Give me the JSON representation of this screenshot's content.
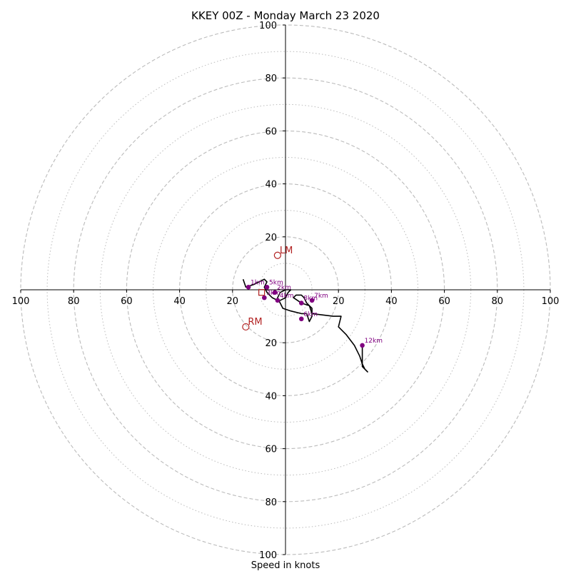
{
  "chart_data": {
    "type": "hodograph",
    "title": "KKEY 00Z - Monday March 23 2020",
    "xlabel": "Speed in knots",
    "units": "knots",
    "axis_range": [
      -100,
      100
    ],
    "ring_major": [
      20,
      40,
      60,
      80,
      100
    ],
    "ring_minor": [
      10,
      30,
      50,
      70,
      90
    ],
    "tick_labels_x": [
      "100",
      "80",
      "60",
      "40",
      "20",
      "",
      "20",
      "40",
      "60",
      "80",
      "100"
    ],
    "tick_labels_y_top": [
      "100",
      "80",
      "60",
      "40",
      "20"
    ],
    "tick_labels_y_bottom": [
      "20",
      "40",
      "60",
      "80",
      "100"
    ],
    "colors": {
      "hodograph_line": "#000000",
      "level_markers": "#800080",
      "storm_motion": "#b22222",
      "rings": "#bbbbbb",
      "axes": "#000000"
    },
    "hodograph_trace": [
      [
        -16,
        4
      ],
      [
        -15,
        1
      ],
      [
        -12,
        2
      ],
      [
        -8,
        4
      ],
      [
        -7,
        3
      ],
      [
        -8,
        1
      ],
      [
        -7,
        -1
      ],
      [
        -6,
        -2
      ],
      [
        -5,
        -3
      ],
      [
        -3,
        -4
      ],
      [
        -2,
        -4
      ],
      [
        0,
        -3
      ],
      [
        1,
        -1
      ],
      [
        2,
        0
      ],
      [
        0,
        0
      ],
      [
        -2,
        -1
      ],
      [
        -3,
        -3
      ],
      [
        -2,
        -5
      ],
      [
        -1,
        -7
      ],
      [
        2,
        -8
      ],
      [
        6,
        -9
      ],
      [
        8,
        -9
      ],
      [
        9,
        -12
      ],
      [
        10,
        -10
      ],
      [
        10,
        -7
      ],
      [
        8,
        -5
      ],
      [
        7,
        -3
      ],
      [
        6,
        -2
      ],
      [
        4,
        -2
      ],
      [
        3,
        -3
      ],
      [
        6,
        -5
      ],
      [
        9,
        -6
      ],
      [
        10,
        -9
      ],
      [
        18,
        -10
      ],
      [
        21,
        -10
      ],
      [
        20,
        -14
      ],
      [
        23,
        -17
      ],
      [
        26,
        -21
      ],
      [
        28,
        -25
      ],
      [
        29,
        -28
      ],
      [
        30,
        -30
      ],
      [
        31,
        -31
      ],
      [
        29,
        -29
      ],
      [
        29,
        -21
      ]
    ],
    "levels": [
      {
        "label": "1km",
        "u": -14,
        "v": 1
      },
      {
        "label": "2km",
        "u": -4,
        "v": -1
      },
      {
        "label": "3km",
        "u": -8,
        "v": -3
      },
      {
        "label": "4km",
        "u": -3,
        "v": -4
      },
      {
        "label": "5km",
        "u": -7,
        "v": 1
      },
      {
        "label": "6km",
        "u": 6,
        "v": -11
      },
      {
        "label": "7km",
        "u": 10,
        "v": -4
      },
      {
        "label": "8km",
        "u": 6,
        "v": -5
      },
      {
        "label": "12km",
        "u": 29,
        "v": -21
      }
    ],
    "storm_motion": [
      {
        "label": "LM",
        "u": -3,
        "v": 13,
        "marker": "circle"
      },
      {
        "label": "RM",
        "u": -15,
        "v": -14,
        "marker": "circle"
      },
      {
        "label": "",
        "u": -9,
        "v": -1,
        "marker": "square"
      }
    ]
  }
}
